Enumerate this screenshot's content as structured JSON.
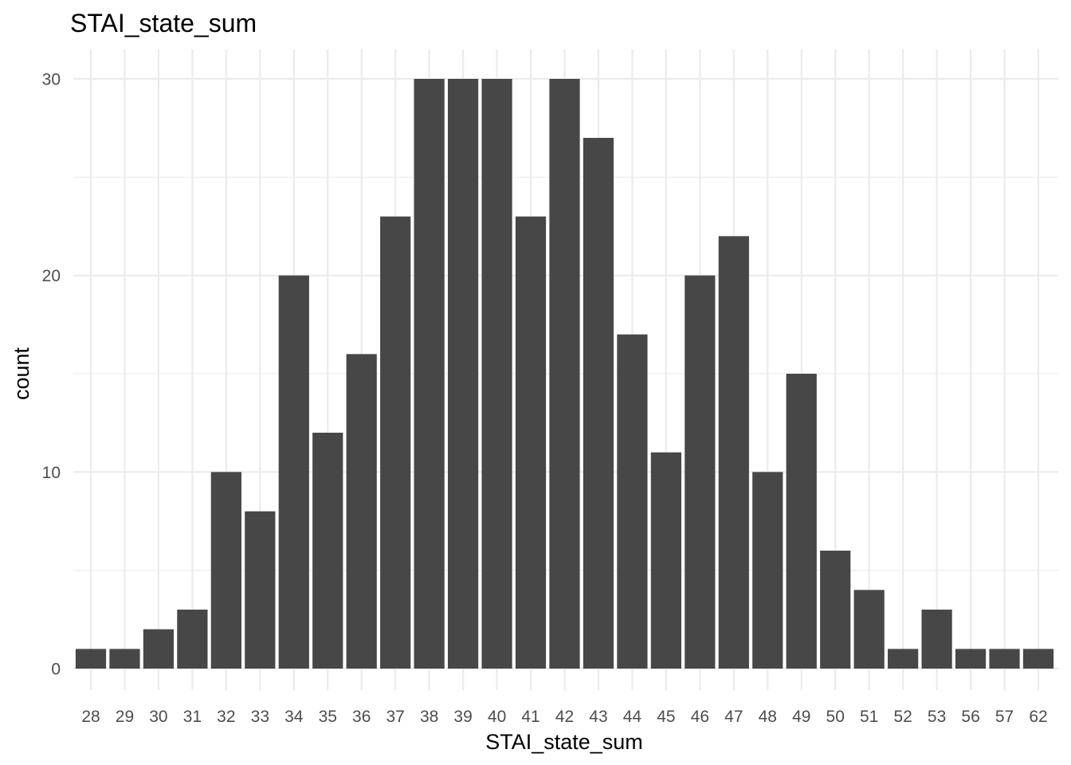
{
  "chart_data": {
    "type": "bar",
    "title": "STAI_state_sum",
    "xlabel": "STAI_state_sum",
    "ylabel": "count",
    "categories": [
      "28",
      "29",
      "30",
      "31",
      "32",
      "33",
      "34",
      "35",
      "36",
      "37",
      "38",
      "39",
      "40",
      "41",
      "42",
      "43",
      "44",
      "45",
      "46",
      "47",
      "48",
      "49",
      "50",
      "51",
      "52",
      "53",
      "56",
      "57",
      "62"
    ],
    "values": [
      1,
      1,
      2,
      3,
      10,
      8,
      20,
      12,
      16,
      23,
      30,
      30,
      30,
      23,
      30,
      27,
      17,
      11,
      20,
      22,
      10,
      15,
      6,
      4,
      1,
      3,
      1,
      1,
      1
    ],
    "ylim": [
      0,
      31.5
    ],
    "yticks": [
      0,
      10,
      20,
      30
    ],
    "yticks_minor": [
      5,
      15,
      25
    ],
    "grid": true,
    "legend": "none",
    "colors": {
      "bar": "#474747",
      "grid": "#ebebeb",
      "tick_text": "#4d4d4d",
      "text": "#000000"
    }
  }
}
